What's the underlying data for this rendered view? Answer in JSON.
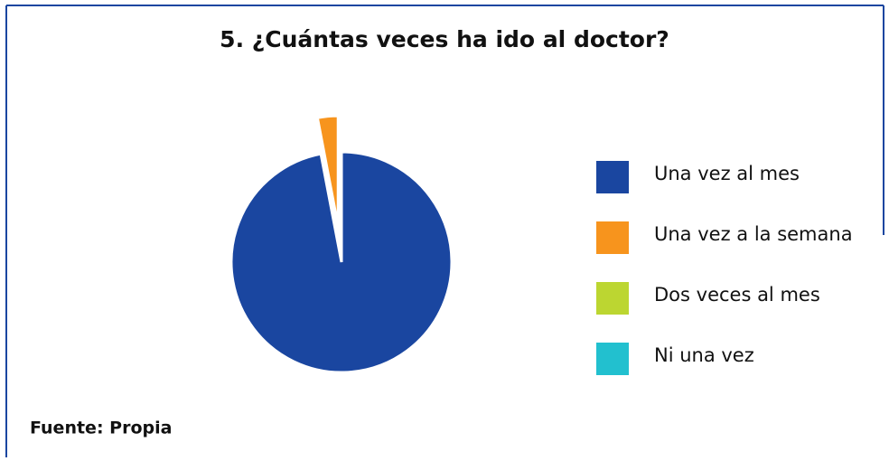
{
  "chart_data": {
    "type": "pie",
    "title": "5. ¿Cuántas veces ha ido al doctor?",
    "categories": [
      "Una vez al mes",
      "Una vez a la semana",
      "Dos veces al mes",
      "Ni una vez"
    ],
    "values": [
      97,
      3,
      0,
      0
    ],
    "colors": [
      "#1a46a0",
      "#f7941d",
      "#bcd631",
      "#22c0cf"
    ],
    "legend": "right",
    "source": "Fuente: Propia"
  }
}
